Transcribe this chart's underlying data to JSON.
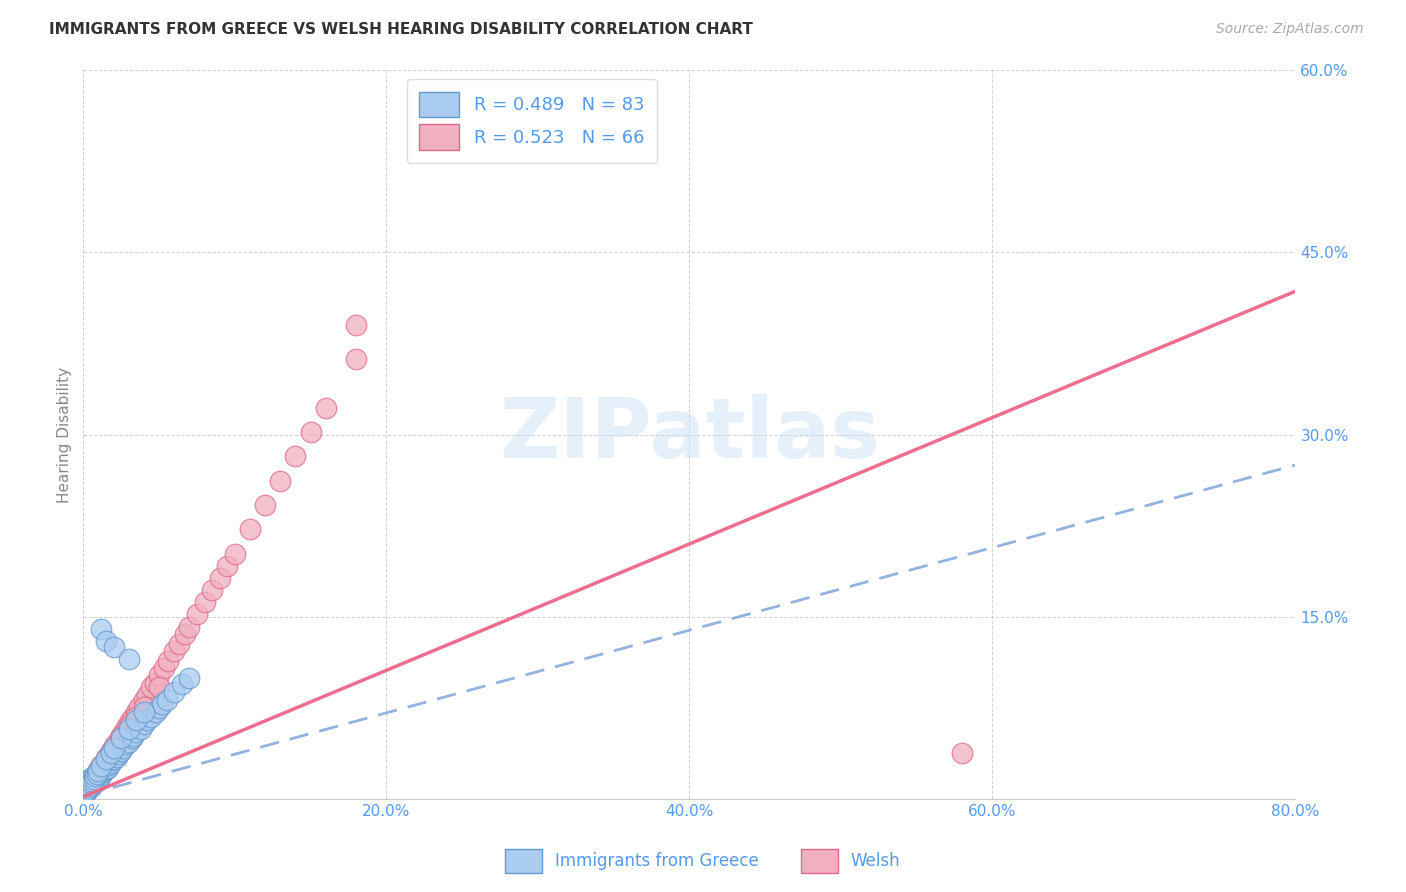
{
  "title": "IMMIGRANTS FROM GREECE VS WELSH HEARING DISABILITY CORRELATION CHART",
  "source": "Source: ZipAtlas.com",
  "ylabel": "Hearing Disability",
  "watermark": "ZIPatlas",
  "r_blue": 0.489,
  "n_blue": 83,
  "r_pink": 0.523,
  "n_pink": 66,
  "xlim": [
    0.0,
    0.8
  ],
  "ylim": [
    0.0,
    0.6
  ],
  "xticks": [
    0.0,
    0.2,
    0.4,
    0.6,
    0.8
  ],
  "yticks": [
    0.0,
    0.15,
    0.3,
    0.45,
    0.6
  ],
  "xtick_labels": [
    "0.0%",
    "20.0%",
    "40.0%",
    "60.0%",
    "80.0%"
  ],
  "ytick_labels": [
    "",
    "15.0%",
    "30.0%",
    "45.0%",
    "60.0%"
  ],
  "color_blue_face": "#aaccf0",
  "color_blue_edge": "#6699cc",
  "color_pink_face": "#f0b0c0",
  "color_pink_edge": "#e06888",
  "line_blue_color": "#88aadd",
  "line_pink_color": "#ee6688",
  "background_color": "#ffffff",
  "grid_color": "#cccccc",
  "title_color": "#333333",
  "axis_tick_color": "#5599ee",
  "legend_label_blue": "Immigrants from Greece",
  "legend_label_pink": "Welsh",
  "blue_slope": 0.34,
  "blue_intercept": 0.003,
  "pink_slope": 0.52,
  "pink_intercept": 0.002,
  "blue_points_x": [
    0.0005,
    0.001,
    0.001,
    0.001,
    0.002,
    0.002,
    0.002,
    0.002,
    0.003,
    0.003,
    0.003,
    0.003,
    0.004,
    0.004,
    0.004,
    0.005,
    0.005,
    0.005,
    0.006,
    0.006,
    0.006,
    0.007,
    0.007,
    0.008,
    0.008,
    0.009,
    0.009,
    0.01,
    0.01,
    0.011,
    0.012,
    0.013,
    0.014,
    0.015,
    0.015,
    0.016,
    0.017,
    0.018,
    0.019,
    0.02,
    0.022,
    0.023,
    0.025,
    0.026,
    0.028,
    0.03,
    0.032,
    0.033,
    0.035,
    0.038,
    0.04,
    0.042,
    0.045,
    0.048,
    0.05,
    0.052,
    0.055,
    0.06,
    0.065,
    0.07,
    0.0005,
    0.001,
    0.002,
    0.003,
    0.004,
    0.005,
    0.006,
    0.007,
    0.008,
    0.009,
    0.01,
    0.012,
    0.015,
    0.018,
    0.02,
    0.025,
    0.03,
    0.035,
    0.04,
    0.012,
    0.015,
    0.02,
    0.03
  ],
  "blue_points_y": [
    0.005,
    0.008,
    0.01,
    0.012,
    0.006,
    0.01,
    0.013,
    0.015,
    0.008,
    0.011,
    0.014,
    0.016,
    0.01,
    0.013,
    0.016,
    0.01,
    0.013,
    0.016,
    0.012,
    0.015,
    0.018,
    0.013,
    0.017,
    0.014,
    0.018,
    0.015,
    0.019,
    0.016,
    0.02,
    0.018,
    0.02,
    0.022,
    0.024,
    0.025,
    0.028,
    0.026,
    0.028,
    0.03,
    0.032,
    0.033,
    0.035,
    0.037,
    0.04,
    0.042,
    0.045,
    0.047,
    0.05,
    0.052,
    0.055,
    0.058,
    0.062,
    0.065,
    0.068,
    0.072,
    0.075,
    0.078,
    0.082,
    0.088,
    0.095,
    0.1,
    0.003,
    0.005,
    0.007,
    0.009,
    0.011,
    0.013,
    0.015,
    0.017,
    0.019,
    0.021,
    0.023,
    0.027,
    0.033,
    0.038,
    0.042,
    0.05,
    0.058,
    0.065,
    0.072,
    0.14,
    0.13,
    0.125,
    0.115
  ],
  "pink_points_x": [
    0.001,
    0.002,
    0.003,
    0.004,
    0.005,
    0.006,
    0.007,
    0.008,
    0.009,
    0.01,
    0.011,
    0.013,
    0.015,
    0.017,
    0.019,
    0.021,
    0.023,
    0.025,
    0.027,
    0.029,
    0.031,
    0.033,
    0.035,
    0.037,
    0.04,
    0.042,
    0.045,
    0.047,
    0.05,
    0.053,
    0.056,
    0.06,
    0.063,
    0.067,
    0.07,
    0.075,
    0.08,
    0.085,
    0.09,
    0.095,
    0.1,
    0.11,
    0.12,
    0.13,
    0.14,
    0.15,
    0.16,
    0.18,
    0.002,
    0.003,
    0.004,
    0.005,
    0.006,
    0.008,
    0.01,
    0.012,
    0.015,
    0.018,
    0.02,
    0.025,
    0.03,
    0.035,
    0.04,
    0.05,
    0.58,
    0.18
  ],
  "pink_points_y": [
    0.007,
    0.009,
    0.011,
    0.013,
    0.015,
    0.014,
    0.016,
    0.018,
    0.02,
    0.022,
    0.024,
    0.028,
    0.032,
    0.036,
    0.04,
    0.044,
    0.048,
    0.052,
    0.056,
    0.06,
    0.064,
    0.068,
    0.072,
    0.076,
    0.082,
    0.086,
    0.092,
    0.096,
    0.102,
    0.108,
    0.114,
    0.122,
    0.128,
    0.136,
    0.142,
    0.152,
    0.162,
    0.172,
    0.182,
    0.192,
    0.202,
    0.222,
    0.242,
    0.262,
    0.282,
    0.302,
    0.322,
    0.362,
    0.008,
    0.01,
    0.012,
    0.014,
    0.016,
    0.02,
    0.024,
    0.028,
    0.034,
    0.04,
    0.044,
    0.052,
    0.06,
    0.068,
    0.076,
    0.092,
    0.038,
    0.39
  ]
}
